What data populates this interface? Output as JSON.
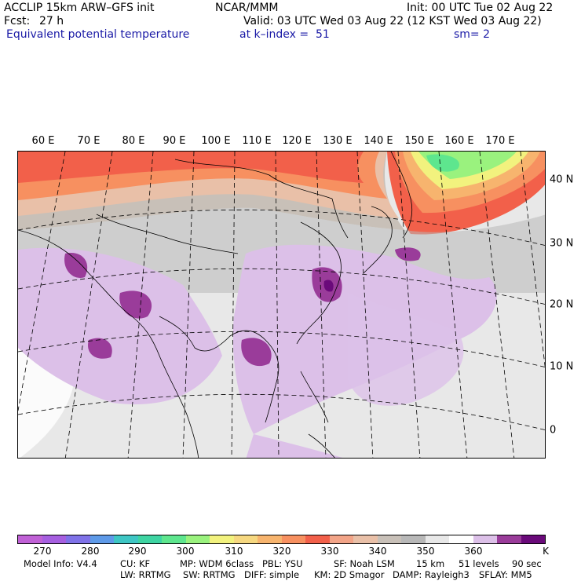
{
  "header": {
    "model_line": "ACCLIP 15km ARW–GFS init",
    "forecast_label": "Fcst:",
    "forecast_value": "27 h",
    "field_name": "Equivalent potential temperature",
    "center": "NCAR/MMM",
    "init": "Init: 00 UTC Tue 02 Aug 22",
    "valid": "Valid: 03 UTC Wed 03 Aug 22 (12 KST Wed 03 Aug 22)",
    "level": "at k–index =  51",
    "smoothing": "sm= 2"
  },
  "map": {
    "longitude_labels": [
      "60 E",
      "70 E",
      "80 E",
      "90 E",
      "100 E",
      "110 E",
      "120 E",
      "130 E",
      "140 E",
      "150 E",
      "160 E",
      "170 E"
    ],
    "latitude_labels": [
      "40 N",
      "30 N",
      "20 N",
      "10 N",
      "0"
    ]
  },
  "colorbar": {
    "colors": [
      "#c061d6",
      "#a65fe0",
      "#7f72e8",
      "#5e9ae8",
      "#3ec6c4",
      "#3ed4a2",
      "#5ee68e",
      "#9af27e",
      "#f2f27e",
      "#f6d880",
      "#f7b46e",
      "#f79060",
      "#f2604a",
      "#f2a488",
      "#e9c0a8",
      "#c8c0b8",
      "#b8b8b8",
      "#e8e8e8",
      "#ffffff",
      "#dcc0e8",
      "#9a3c9a",
      "#6a0a7a"
    ],
    "tick_labels": [
      "270",
      "280",
      "290",
      "300",
      "310",
      "320",
      "330",
      "340",
      "350",
      "360"
    ],
    "unit": "K"
  },
  "footer": {
    "model_info": "Model Info: V4.4",
    "cu": "CU: KF",
    "mp": "MP: WDM 6class",
    "pbl": "PBL: YSU",
    "sf": "SF: Noah LSM",
    "res": "15 km",
    "levels": "51 levels",
    "dt": "90 sec",
    "lw": "LW: RRTMG",
    "sw": "SW: RRTMG",
    "diff": "DIFF: simple",
    "km": "KM: 2D Smagor",
    "damp": "DAMP: Rayleigh3",
    "sflay": "SFLAY: MM5"
  }
}
